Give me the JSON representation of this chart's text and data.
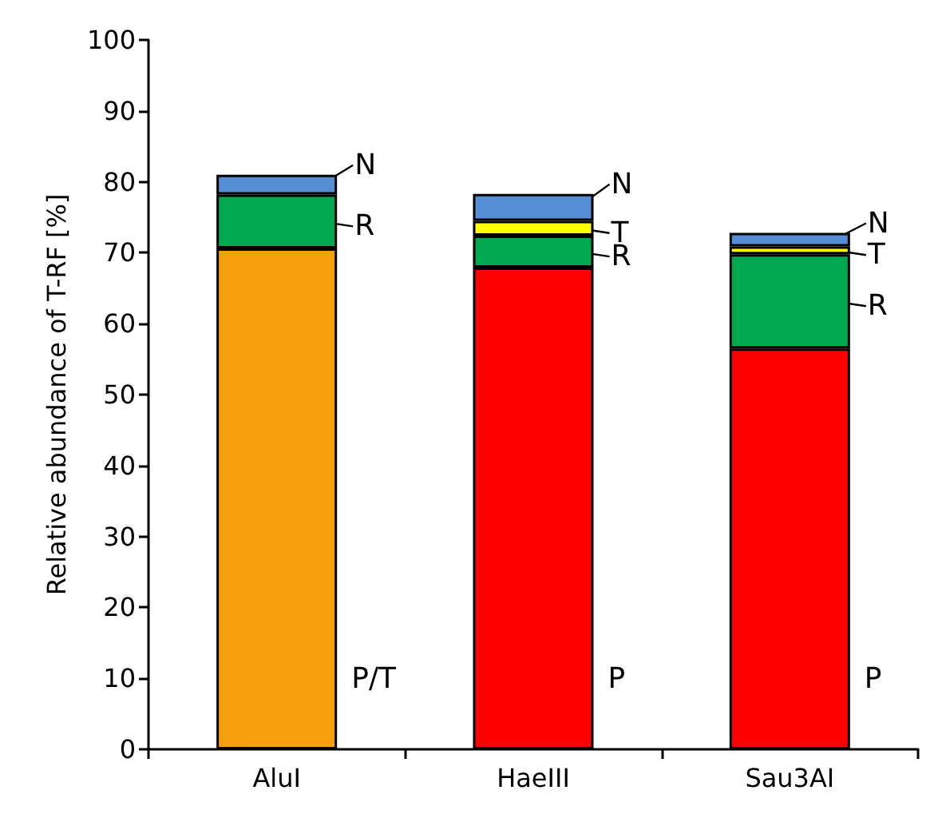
{
  "chart_data": {
    "type": "bar",
    "stacked": true,
    "ylabel": "Relative abundance of T-RF [%]",
    "categories": [
      "AluI",
      "HaeIII",
      "Sau3AI"
    ],
    "series": [
      {
        "colors": [
          "#f5a00a",
          "#ff0000",
          "#ff0000"
        ],
        "values": [
          70.6,
          67.9,
          56.5
        ]
      },
      {
        "color": "#00a84f",
        "values": [
          7.6,
          4.5,
          13.3
        ]
      },
      {
        "color": "#ffff00",
        "values": [
          null,
          2.1,
          1.1
        ]
      },
      {
        "color": "#558ed5",
        "values": [
          2.8,
          3.8,
          1.9
        ]
      }
    ],
    "ylim": [
      0,
      100
    ],
    "yticks": [
      0,
      10,
      20,
      30,
      40,
      50,
      60,
      70,
      80,
      90,
      100
    ],
    "grid": false,
    "annotations": [
      {
        "text": "N",
        "x": "AluI",
        "y": 81
      },
      {
        "text": "R",
        "x": "AluI",
        "y": 78.2
      },
      "P/T",
      {
        "text": "N",
        "x": "HaeIII",
        "y": 78.3
      },
      {
        "text": "T",
        "x": "HaeIII",
        "y": 74.5
      },
      {
        "text": "R",
        "x": "HaeIII",
        "y": 72.4
      },
      "P",
      {
        "text": "N",
        "x": "Sau3AI",
        "y": 72.8
      },
      {
        "text": "T",
        "x": "Sau3AI",
        "y": 70.9
      },
      {
        "text": "R",
        "x": "Sau3AI",
        "y": 69.8
      },
      "P"
    ]
  }
}
